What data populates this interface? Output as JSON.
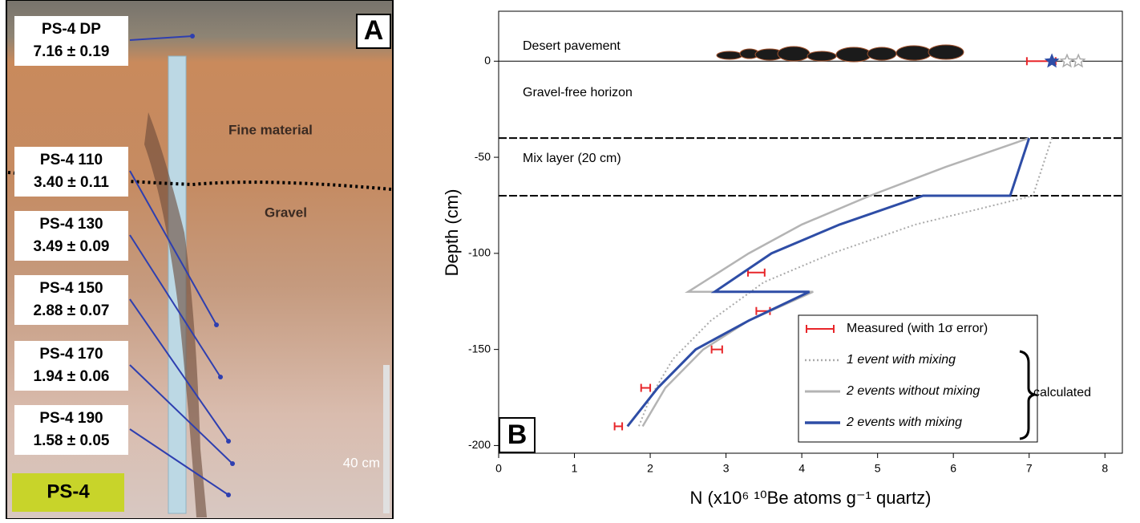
{
  "panel_a": {
    "label": "A",
    "samples": [
      {
        "name": "PS-4 DP",
        "value": "7.16 ± 0.19"
      },
      {
        "name": "PS-4 110",
        "value": "3.40 ± 0.11"
      },
      {
        "name": "PS-4 130",
        "value": "3.49 ± 0.09"
      },
      {
        "name": "PS-4 150",
        "value": "2.88 ± 0.07"
      },
      {
        "name": "PS-4 170",
        "value": "1.94 ± 0.06"
      },
      {
        "name": "PS-4 190",
        "value": "1.58 ± 0.05"
      }
    ],
    "annotations": [
      "Fine material",
      "Gravel"
    ],
    "scale": "40 cm",
    "site": "PS-4"
  },
  "chart_data": {
    "type": "depth-profile",
    "panel_label": "B",
    "x_label": "N (x10⁶ ¹⁰Be atoms g⁻¹ quartz)",
    "y_label": "Depth (cm)",
    "xlim": [
      0,
      8.23
    ],
    "ylim": [
      -204,
      26
    ],
    "xticks": [
      0,
      1,
      2,
      3,
      4,
      5,
      6,
      7,
      8
    ],
    "yticks": [
      0,
      -50,
      -100,
      -150,
      -200
    ],
    "layer_labels": [
      "Desert pavement",
      "Gravel-free horizon",
      "Mix layer (20 cm)"
    ],
    "layer_boundaries": [
      0,
      -40,
      -70
    ],
    "bracket_label": "calculated",
    "series": [
      {
        "name": "Measured (with 1σ error)",
        "color": "#e8262a",
        "style": "errorbar",
        "x": [
          7.16,
          3.4,
          3.49,
          2.88,
          1.94,
          1.58
        ],
        "y": [
          0,
          -110,
          -130,
          -150,
          -170,
          -190
        ],
        "xerr": [
          0.19,
          0.11,
          0.09,
          0.07,
          0.06,
          0.05
        ]
      },
      {
        "name": "1 event with mixing",
        "color": "#aaaaaa",
        "style": "dotted",
        "x": [
          7.3,
          7.05,
          5.5,
          4.4,
          3.5,
          2.8,
          2.3,
          2.0,
          1.85
        ],
        "y": [
          -40,
          -70,
          -85,
          -100,
          -115,
          -135,
          -155,
          -175,
          -190
        ]
      },
      {
        "name": "2 events without mixing",
        "color": "#b4b4b4",
        "style": "solid",
        "x": [
          7.0,
          5.9,
          4.9,
          4.0,
          3.3,
          2.5,
          4.15,
          3.3,
          2.7,
          2.2,
          1.9
        ],
        "y": [
          -40,
          -55,
          -70,
          -85,
          -100,
          -120,
          -120,
          -135,
          -150,
          -170,
          -190
        ]
      },
      {
        "name": "2 events with mixing",
        "color": "#2e4da6",
        "style": "thick",
        "x": [
          7.0,
          6.75,
          5.6,
          4.5,
          3.6,
          2.85,
          4.1,
          3.3,
          2.6,
          2.1,
          1.7
        ],
        "y": [
          -40,
          -70,
          -70,
          -85,
          -100,
          -120,
          -120,
          -135,
          -150,
          -170,
          -190
        ]
      }
    ],
    "surface_points": {
      "x": [
        7.3,
        7.5,
        7.65
      ],
      "y": [
        0,
        0,
        0
      ],
      "colors": [
        "#2e4da6",
        "#aaaaaa",
        "#aaaaaa"
      ]
    }
  }
}
